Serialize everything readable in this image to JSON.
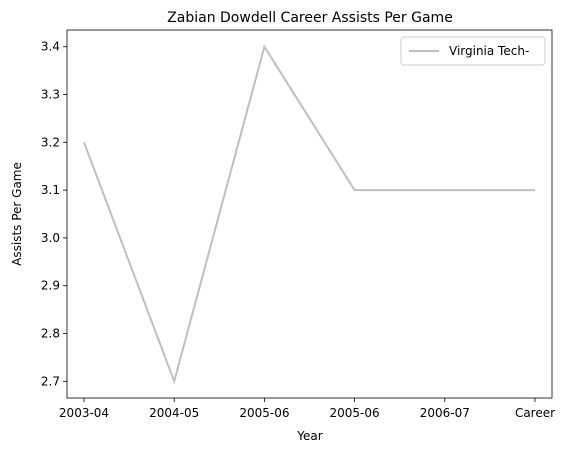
{
  "chart_data": {
    "type": "line",
    "title": "Zabian Dowdell Career Assists Per Game",
    "xlabel": "Year",
    "ylabel": "Assists Per Game",
    "categories": [
      "2003-04",
      "2004-05",
      "2005-06",
      "2005-06",
      "2006-07",
      "Career"
    ],
    "series": [
      {
        "name": "Virginia Tech-",
        "values": [
          3.2,
          2.7,
          3.4,
          3.1,
          3.1,
          3.1
        ],
        "color": "#bfbfbf"
      }
    ],
    "ylim": [
      2.665,
      3.435
    ],
    "yticks": [
      "2.7",
      "2.8",
      "2.9",
      "3.0",
      "3.1",
      "3.2",
      "3.3",
      "3.4"
    ],
    "grid": false,
    "legend_position": "top-right"
  }
}
